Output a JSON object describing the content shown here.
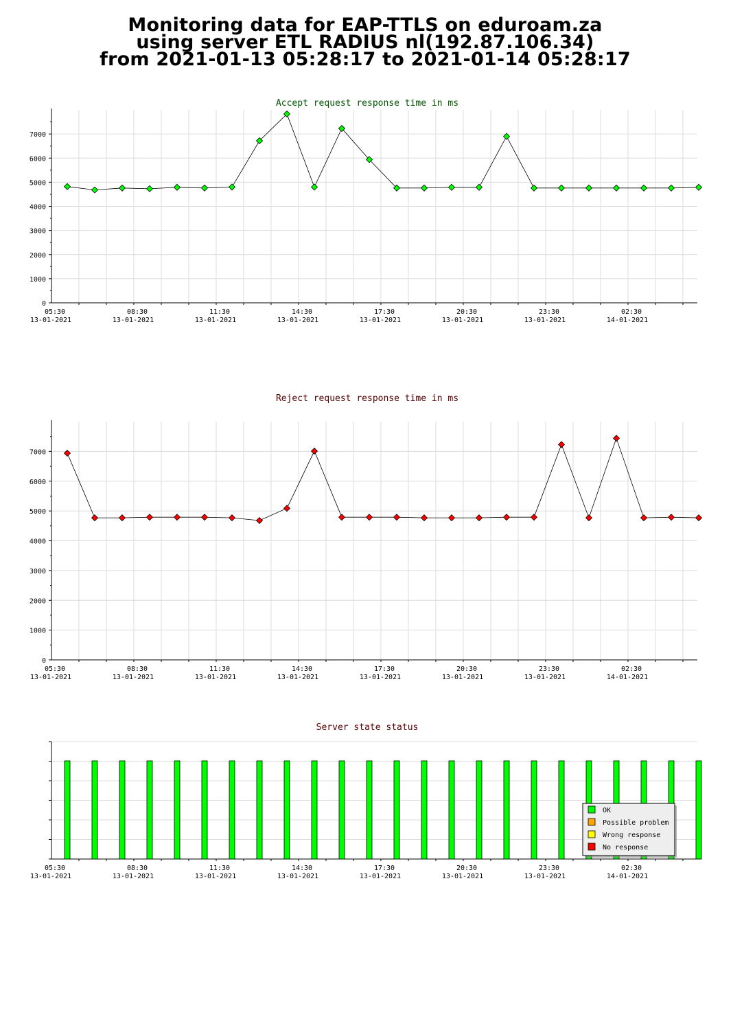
{
  "header": {
    "line1": "Monitoring data for EAP-TTLS on eduroam.za",
    "line2": "using server ETL RADIUS nl(192.87.106.34)",
    "line3": "from 2021-01-13 05:28:17 to 2021-01-14 05:28:17"
  },
  "colors": {
    "accept": "#00ff00",
    "reject": "#ff0000",
    "possible_problem": "#ffa500",
    "wrong_response": "#ffff00",
    "accept_title": "#005500",
    "reject_title": "#550000"
  },
  "x_ticks": [
    {
      "time": "05:30",
      "date": "13-01-2021"
    },
    {
      "time": "08:30",
      "date": "13-01-2021"
    },
    {
      "time": "11:30",
      "date": "13-01-2021"
    },
    {
      "time": "14:30",
      "date": "13-01-2021"
    },
    {
      "time": "17:30",
      "date": "13-01-2021"
    },
    {
      "time": "20:30",
      "date": "13-01-2021"
    },
    {
      "time": "23:30",
      "date": "13-01-2021"
    },
    {
      "time": "02:30",
      "date": "14-01-2021"
    }
  ],
  "chart_data": [
    {
      "type": "line",
      "title": "Accept request response time in ms",
      "xlabel": "",
      "ylabel": "",
      "ylim": [
        0,
        8000
      ],
      "yticks": [
        0,
        1000,
        2000,
        3000,
        4000,
        5000,
        6000,
        7000
      ],
      "grid": true,
      "x": [
        "05:57",
        "06:57",
        "07:57",
        "08:57",
        "09:57",
        "10:57",
        "11:57",
        "12:57",
        "13:57",
        "14:57",
        "15:57",
        "16:57",
        "17:57",
        "18:57",
        "19:57",
        "20:57",
        "21:57",
        "22:57",
        "23:57",
        "00:57",
        "01:57",
        "02:57",
        "03:57",
        "04:57"
      ],
      "series": [
        {
          "values": [
            4820,
            4680,
            4760,
            4730,
            4790,
            4760,
            4800,
            6720,
            7830,
            4800,
            7230,
            5940,
            4760,
            4760,
            4790,
            4790,
            6900,
            4760,
            4760,
            4760,
            4760,
            4760,
            4760,
            4790
          ]
        }
      ]
    },
    {
      "type": "line",
      "title": "Reject request response time in ms",
      "xlabel": "",
      "ylabel": "",
      "ylim": [
        0,
        8000
      ],
      "yticks": [
        0,
        1000,
        2000,
        3000,
        4000,
        5000,
        6000,
        7000
      ],
      "grid": true,
      "x": [
        "05:57",
        "06:57",
        "07:57",
        "08:57",
        "09:57",
        "10:57",
        "11:57",
        "12:57",
        "13:57",
        "14:57",
        "15:57",
        "16:57",
        "17:57",
        "18:57",
        "19:57",
        "20:57",
        "21:57",
        "22:57",
        "23:57",
        "00:57",
        "01:57",
        "02:57",
        "03:57",
        "04:57"
      ],
      "series": [
        {
          "values": [
            6940,
            4770,
            4770,
            4790,
            4790,
            4790,
            4770,
            4680,
            5090,
            7010,
            4790,
            4790,
            4790,
            4770,
            4770,
            4770,
            4790,
            4790,
            7230,
            4770,
            7440,
            4770,
            4790,
            4770
          ]
        }
      ]
    },
    {
      "type": "bar",
      "title": "Server state status",
      "x": [
        "05:57",
        "06:57",
        "07:57",
        "08:57",
        "09:57",
        "10:57",
        "11:57",
        "12:57",
        "13:57",
        "14:57",
        "15:57",
        "16:57",
        "17:57",
        "18:57",
        "19:57",
        "20:57",
        "21:57",
        "22:57",
        "23:57",
        "00:57",
        "01:57",
        "02:57",
        "03:57",
        "04:57"
      ],
      "series": [
        {
          "name": "OK",
          "values": [
            1,
            1,
            1,
            1,
            1,
            1,
            1,
            1,
            1,
            1,
            1,
            1,
            1,
            1,
            1,
            1,
            1,
            1,
            1,
            1,
            1,
            1,
            1,
            1
          ]
        }
      ],
      "legend": {
        "placement": "bottom-right",
        "entries": [
          "OK",
          "Possible problem",
          "Wrong response",
          "No response"
        ]
      }
    }
  ]
}
